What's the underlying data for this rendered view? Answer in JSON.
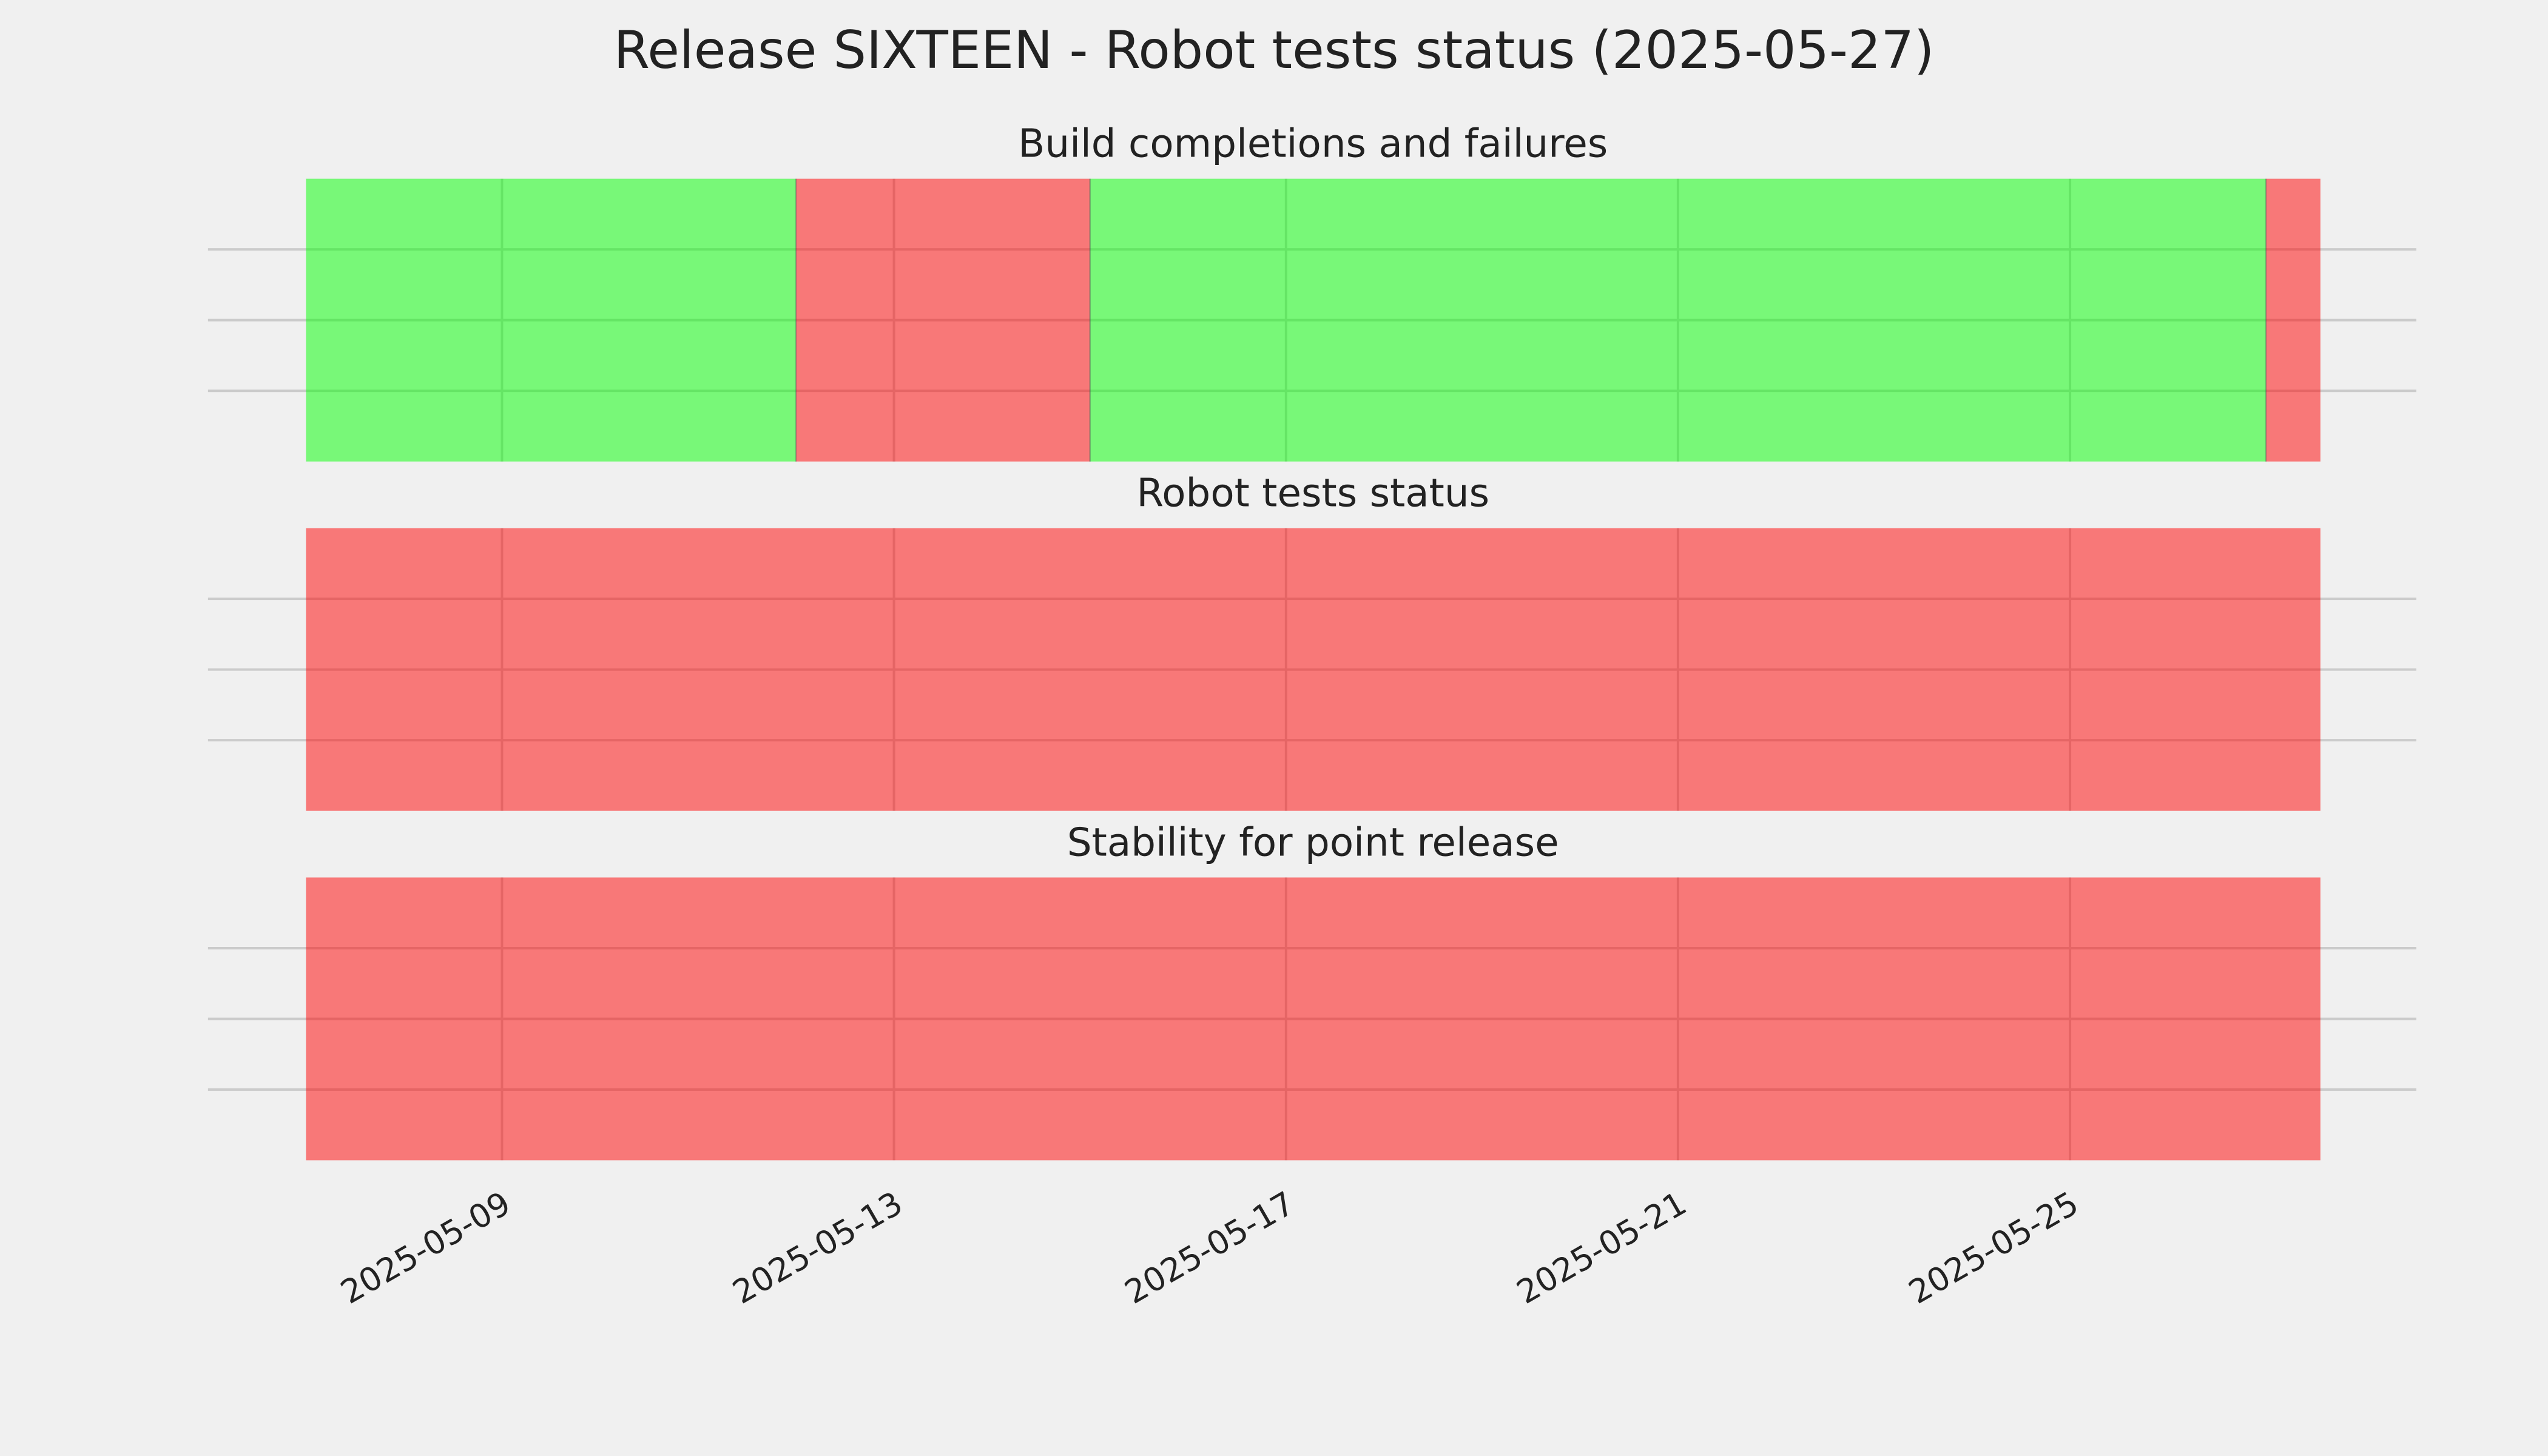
{
  "title": "Release SIXTEEN - Robot tests status (2025-05-27)",
  "chart_data": [
    {
      "type": "timeline",
      "title": "Build completions and failures",
      "segments": [
        {
          "start": "2025-05-07",
          "end": "2025-05-12",
          "color": "#00ff00"
        },
        {
          "start": "2025-05-12",
          "end": "2025-05-15",
          "color": "#ff0000"
        },
        {
          "start": "2025-05-15",
          "end": "2025-05-27",
          "color": "#00ff00"
        },
        {
          "start": "2025-05-27",
          "end": "2025-05-27T13:20Z",
          "color": "#ff0000"
        }
      ],
      "xlim": [
        "2025-05-06",
        "2025-05-28T12:50Z"
      ],
      "xticks": [
        "2025-05-09",
        "2025-05-13",
        "2025-05-17",
        "2025-05-21",
        "2025-05-25"
      ],
      "ylim": [
        0,
        1
      ],
      "yticks": [
        0.25,
        0.5,
        0.75
      ],
      "grid": true
    },
    {
      "type": "timeline",
      "title": "Robot tests status",
      "segments": [
        {
          "start": "2025-05-07",
          "end": "2025-05-27T13:20Z",
          "color": "#ff0000"
        }
      ],
      "xlim": [
        "2025-05-06",
        "2025-05-28T12:50Z"
      ],
      "xticks": [
        "2025-05-09",
        "2025-05-13",
        "2025-05-17",
        "2025-05-21",
        "2025-05-25"
      ],
      "ylim": [
        0,
        1
      ],
      "yticks": [
        0.25,
        0.5,
        0.75
      ],
      "grid": true
    },
    {
      "type": "timeline",
      "title": "Stability for point release",
      "segments": [
        {
          "start": "2025-05-07",
          "end": "2025-05-27T13:20Z",
          "color": "#ff0000"
        }
      ],
      "xlim": [
        "2025-05-06",
        "2025-05-28T12:50Z"
      ],
      "xticks": [
        "2025-05-09",
        "2025-05-13",
        "2025-05-17",
        "2025-05-21",
        "2025-05-25"
      ],
      "ylim": [
        0,
        1
      ],
      "yticks": [
        0.25,
        0.5,
        0.75
      ],
      "grid": true
    }
  ]
}
